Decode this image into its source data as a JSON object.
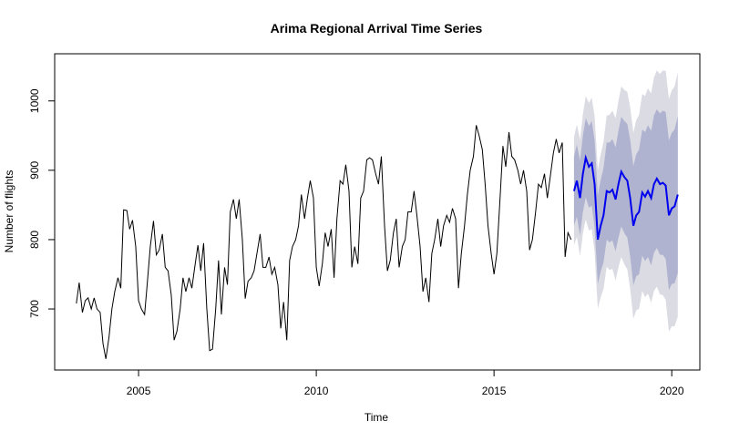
{
  "chart_data": {
    "type": "line",
    "title": "Arima Regional Arrival Time Series",
    "x_label": "Time",
    "y_label": "Number of flights",
    "xlim": [
      2002.64,
      2020.79
    ],
    "ylim": [
      612,
      1068
    ],
    "xticks": [
      2005,
      2010,
      2015,
      2020
    ],
    "yticks": [
      700,
      800,
      900,
      1000
    ],
    "series": [
      {
        "color": "#000000",
        "x": [
          2003.25,
          2003.33,
          2003.42,
          2003.5,
          2003.58,
          2003.67,
          2003.75,
          2003.83,
          2003.92,
          2004,
          2004.08,
          2004.17,
          2004.25,
          2004.33,
          2004.42,
          2004.5,
          2004.58,
          2004.67,
          2004.75,
          2004.83,
          2004.92,
          2005,
          2005.08,
          2005.17,
          2005.25,
          2005.33,
          2005.42,
          2005.5,
          2005.58,
          2005.67,
          2005.75,
          2005.83,
          2005.92,
          2006,
          2006.08,
          2006.17,
          2006.25,
          2006.33,
          2006.42,
          2006.5,
          2006.58,
          2006.67,
          2006.75,
          2006.83,
          2006.92,
          2007,
          2007.08,
          2007.17,
          2007.25,
          2007.33,
          2007.42,
          2007.5,
          2007.58,
          2007.67,
          2007.75,
          2007.83,
          2007.92,
          2008,
          2008.08,
          2008.17,
          2008.25,
          2008.33,
          2008.42,
          2008.5,
          2008.58,
          2008.67,
          2008.75,
          2008.83,
          2008.92,
          2009,
          2009.08,
          2009.17,
          2009.25,
          2009.33,
          2009.42,
          2009.5,
          2009.58,
          2009.67,
          2009.75,
          2009.83,
          2009.92,
          2010,
          2010.08,
          2010.17,
          2010.25,
          2010.33,
          2010.42,
          2010.5,
          2010.58,
          2010.67,
          2010.75,
          2010.83,
          2010.92,
          2011,
          2011.08,
          2011.17,
          2011.25,
          2011.33,
          2011.42,
          2011.5,
          2011.58,
          2011.67,
          2011.75,
          2011.83,
          2011.92,
          2012,
          2012.08,
          2012.17,
          2012.25,
          2012.33,
          2012.42,
          2012.5,
          2012.58,
          2012.67,
          2012.75,
          2012.83,
          2012.92,
          2013,
          2013.08,
          2013.17,
          2013.25,
          2013.33,
          2013.42,
          2013.5,
          2013.58,
          2013.67,
          2013.75,
          2013.83,
          2013.92,
          2014,
          2014.08,
          2014.17,
          2014.25,
          2014.33,
          2014.42,
          2014.5,
          2014.58,
          2014.67,
          2014.75,
          2014.83,
          2014.92,
          2015,
          2015.08,
          2015.17,
          2015.25,
          2015.33,
          2015.42,
          2015.5,
          2015.58,
          2015.67,
          2015.75,
          2015.83,
          2015.92,
          2016,
          2016.08,
          2016.17,
          2016.25,
          2016.33,
          2016.42,
          2016.5,
          2016.58,
          2016.67,
          2016.75,
          2016.83,
          2016.92,
          2017,
          2017.08,
          2017.17
        ],
        "values": [
          708,
          738,
          695,
          712,
          716,
          700,
          716,
          700,
          695,
          650,
          628,
          660,
          700,
          725,
          745,
          730,
          843,
          842,
          815,
          828,
          790,
          712,
          700,
          692,
          740,
          790,
          827,
          778,
          785,
          808,
          760,
          755,
          720,
          655,
          668,
          700,
          745,
          725,
          745,
          730,
          760,
          792,
          755,
          795,
          700,
          640,
          642,
          700,
          770,
          692,
          760,
          735,
          840,
          858,
          830,
          858,
          800,
          715,
          740,
          745,
          755,
          780,
          808,
          760,
          760,
          775,
          750,
          760,
          735,
          672,
          710,
          655,
          770,
          790,
          800,
          820,
          865,
          830,
          860,
          885,
          860,
          760,
          733,
          765,
          810,
          790,
          815,
          745,
          830,
          885,
          880,
          908,
          870,
          760,
          790,
          765,
          860,
          870,
          915,
          918,
          915,
          895,
          880,
          920,
          820,
          755,
          770,
          810,
          830,
          760,
          790,
          800,
          840,
          840,
          870,
          835,
          790,
          725,
          745,
          710,
          780,
          800,
          830,
          790,
          820,
          835,
          825,
          845,
          830,
          730,
          780,
          820,
          865,
          900,
          920,
          965,
          950,
          930,
          880,
          820,
          780,
          750,
          780,
          860,
          935,
          905,
          955,
          920,
          915,
          900,
          880,
          900,
          870,
          785,
          800,
          840,
          880,
          875,
          895,
          860,
          890,
          925,
          945,
          925,
          940,
          775,
          810,
          800
        ]
      },
      {
        "color": "#0000ee",
        "band95_color": "#dbdbe3",
        "band80_color": "#b0b3d0",
        "x": [
          2017.25,
          2017.33,
          2017.42,
          2017.5,
          2017.58,
          2017.67,
          2017.75,
          2017.83,
          2017.92,
          2018,
          2018.08,
          2018.17,
          2018.25,
          2018.33,
          2018.42,
          2018.5,
          2018.58,
          2018.67,
          2018.75,
          2018.83,
          2018.92,
          2019,
          2019.08,
          2019.17,
          2019.25,
          2019.33,
          2019.42,
          2019.5,
          2019.58,
          2019.67,
          2019.75,
          2019.83,
          2019.92,
          2020,
          2020.08,
          2020.17
        ],
        "values": [
          870,
          885,
          860,
          895,
          918,
          905,
          910,
          880,
          800,
          820,
          835,
          870,
          868,
          872,
          858,
          880,
          898,
          890,
          885,
          860,
          820,
          835,
          840,
          868,
          862,
          870,
          860,
          880,
          888,
          880,
          882,
          878,
          835,
          845,
          848,
          865
        ],
        "lower80": [
          820,
          833,
          806,
          840,
          861,
          846,
          849,
          817,
          736,
          754,
          767,
          800,
          796,
          799,
          783,
          803,
          819,
          809,
          803,
          776,
          734,
          747,
          750,
          777,
          769,
          775,
          763,
          781,
          788,
          778,
          778,
          772,
          727,
          736,
          737,
          752
        ],
        "upper80": [
          920,
          937,
          914,
          950,
          975,
          964,
          971,
          943,
          864,
          886,
          903,
          940,
          940,
          945,
          933,
          957,
          977,
          971,
          967,
          944,
          906,
          923,
          930,
          959,
          955,
          965,
          957,
          979,
          988,
          982,
          986,
          984,
          943,
          954,
          959,
          978
        ],
        "lower95": [
          792,
          804,
          776,
          809,
          829,
          813,
          815,
          782,
          700,
          717,
          729,
          761,
          756,
          758,
          741,
          760,
          775,
          764,
          757,
          729,
          686,
          698,
          700,
          726,
          717,
          722,
          709,
          726,
          732,
          721,
          720,
          713,
          667,
          675,
          675,
          689
        ],
        "upper95": [
          948,
          966,
          944,
          981,
          1007,
          997,
          1005,
          978,
          900,
          923,
          941,
          979,
          980,
          986,
          975,
          1000,
          1021,
          1016,
          1013,
          991,
          954,
          972,
          980,
          1010,
          1007,
          1018,
          1011,
          1034,
          1044,
          1039,
          1044,
          1043,
          1003,
          1015,
          1021,
          1041
        ]
      }
    ]
  }
}
